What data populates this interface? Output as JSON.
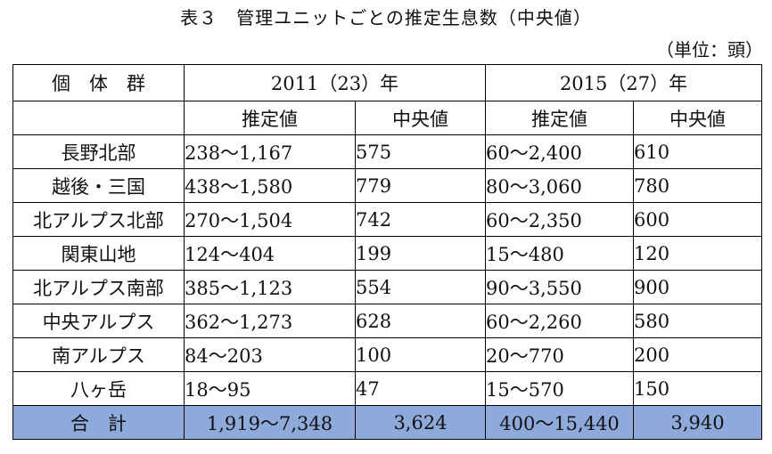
{
  "title": "表３　管理ユニットごとの推定生息数（中央値）",
  "unit": "（単位：頭）",
  "header": {
    "group": "個　体　群",
    "period_2011": "2011（23）年",
    "period_2015": "2015（27）年",
    "estimate": "推定値",
    "median": "中央値"
  },
  "rows": [
    {
      "name": "長野北部",
      "r2011": "238～1,167",
      "m2011": "575",
      "r2015": "60～2,400",
      "m2015": "610"
    },
    {
      "name": "越後・三国",
      "r2011": "438～1,580",
      "m2011": "779",
      "r2015": "80～3,060",
      "m2015": "780"
    },
    {
      "name": "北アルプス北部",
      "r2011": "270～1,504",
      "m2011": "742",
      "r2015": "60～2,350",
      "m2015": "600"
    },
    {
      "name": "関東山地",
      "r2011": "124～404",
      "m2011": "199",
      "r2015": "15～480",
      "m2015": "120"
    },
    {
      "name": "北アルプス南部",
      "r2011": "385～1,123",
      "m2011": "554",
      "r2015": "90～3,550",
      "m2015": "900"
    },
    {
      "name": "中央アルプス",
      "r2011": "362～1,273",
      "m2011": "628",
      "r2015": "60～2,260",
      "m2015": "580"
    },
    {
      "name": "南アルプス",
      "r2011": "84～203",
      "m2011": "100",
      "r2015": "20～770",
      "m2015": "200"
    },
    {
      "name": "八ヶ岳",
      "r2011": "18～95",
      "m2011": "47",
      "r2015": "15～570",
      "m2015": "150"
    }
  ],
  "total": {
    "name": "合　計",
    "r2011": "1,919～7,348",
    "m2011": "3,624",
    "r2015": "400～15,440",
    "m2015": "3,940"
  },
  "colors": {
    "total_row_bg": "#8eaadb"
  }
}
